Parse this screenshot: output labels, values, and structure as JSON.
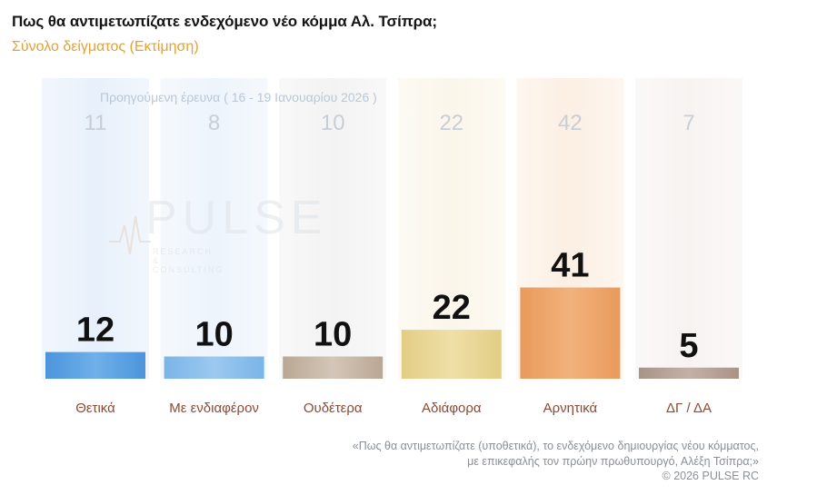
{
  "header": {
    "title": "Πως θα αντιμετωπίζατε ενδεχόμενο νέο κόμμα Αλ. Τσίπρα;",
    "subtitle": "Σύνολο δείγματος  (Εκτίμηση)"
  },
  "watermark": {
    "word": "PULSE",
    "tagline": "RESEARCH & CONSULTING"
  },
  "footnote": {
    "line1": "«Πως θα αντιμετωπίζατε (υποθετικά), το ενδεχόμενο δημιουργίας νέου κόμματος,",
    "line2": "με επικεφαλής τον πρώην πρωθυπουργό, Αλέξη Τσίπρα;»",
    "copyright": "©  2026  PULSE RC"
  },
  "chart_data": {
    "type": "bar",
    "title": "Πως θα αντιμετωπίζατε ενδεχόμενο νέο κόμμα Αλ. Τσίπρα;",
    "subtitle": "Σύνολο δείγματος  (Εκτίμηση)",
    "categories": [
      "Θετικά",
      "Με ενδιαφέρον",
      "Ουδέτερα",
      "Αδιάφορα",
      "Αρνητικά",
      "ΔΓ / ΔΑ"
    ],
    "series": [
      {
        "name": "",
        "values": [
          12,
          10,
          10,
          22,
          41,
          5
        ]
      },
      {
        "name": "Προηγούμενη έρευνα ( 16 - 19 Ιανουαρίου 2026 )",
        "values": [
          11,
          8,
          10,
          22,
          42,
          7
        ]
      }
    ],
    "ylim": [
      0,
      100
    ],
    "grid": false,
    "colors": {
      "current": [
        "#6fb0ea",
        "#9cc9f0",
        "#d4c6b8",
        "#efe0a8",
        "#f2b27c",
        "#c4b1a6"
      ],
      "current_dark": [
        "#4c94dc",
        "#7ab4e8",
        "#b9a794",
        "#e2cd84",
        "#e99a5c",
        "#a99386"
      ],
      "background": [
        "#e7f0fb",
        "#edf4fc",
        "#f3f3f3",
        "#fbf6ea",
        "#fcefe3",
        "#f7f3f1"
      ],
      "prev_value_text": "#c8ced6",
      "category_text": "#8a4a34"
    }
  }
}
